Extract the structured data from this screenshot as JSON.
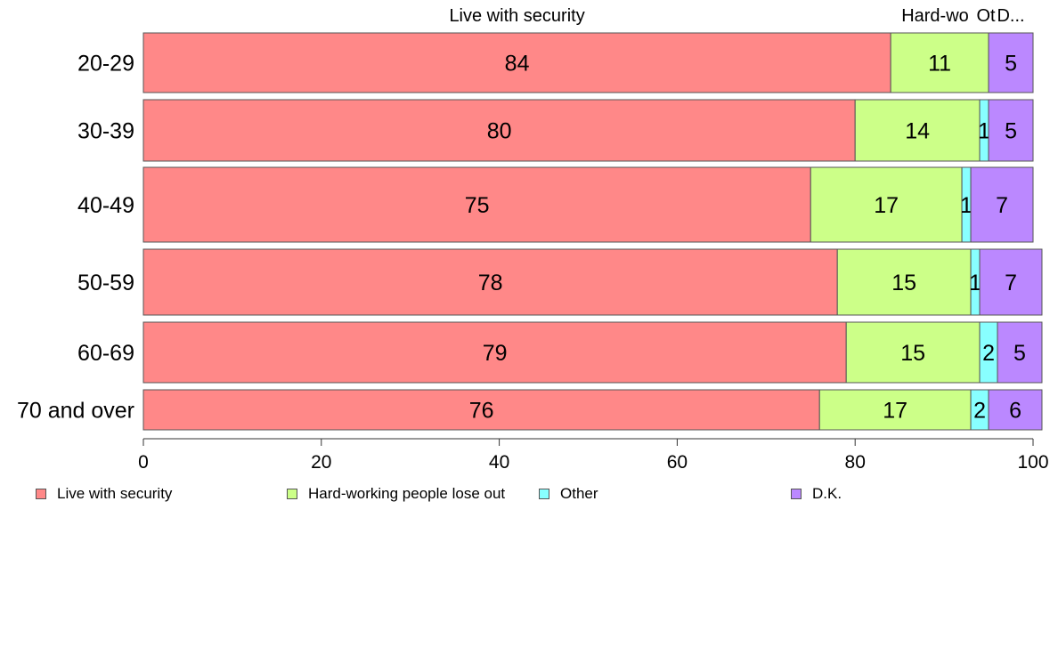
{
  "chart_data": {
    "type": "bar",
    "orientation": "horizontal",
    "stacked": true,
    "categories": [
      "20-29",
      "30-39",
      "40-49",
      "50-59",
      "60-69",
      "70 and over"
    ],
    "series": [
      {
        "name": "Live with security",
        "values": [
          84,
          80,
          75,
          78,
          79,
          76
        ],
        "color": "#ff8888"
      },
      {
        "name": "Hard-working people lose out",
        "values": [
          11,
          14,
          17,
          15,
          15,
          17
        ],
        "color": "#ccff88"
      },
      {
        "name": "Other",
        "values": [
          0,
          1,
          1,
          1,
          2,
          2
        ],
        "color": "#88ffff"
      },
      {
        "name": "D.K.",
        "values": [
          5,
          5,
          7,
          7,
          5,
          6
        ],
        "color": "#bb88ff"
      }
    ],
    "top_labels": [
      "Live with security",
      "Hard-wo",
      "Ot",
      "D..."
    ],
    "xlim": [
      0,
      100
    ],
    "xticks": [
      0,
      20,
      40,
      60,
      80,
      100
    ],
    "grid": false,
    "legend_position": "bottom"
  }
}
